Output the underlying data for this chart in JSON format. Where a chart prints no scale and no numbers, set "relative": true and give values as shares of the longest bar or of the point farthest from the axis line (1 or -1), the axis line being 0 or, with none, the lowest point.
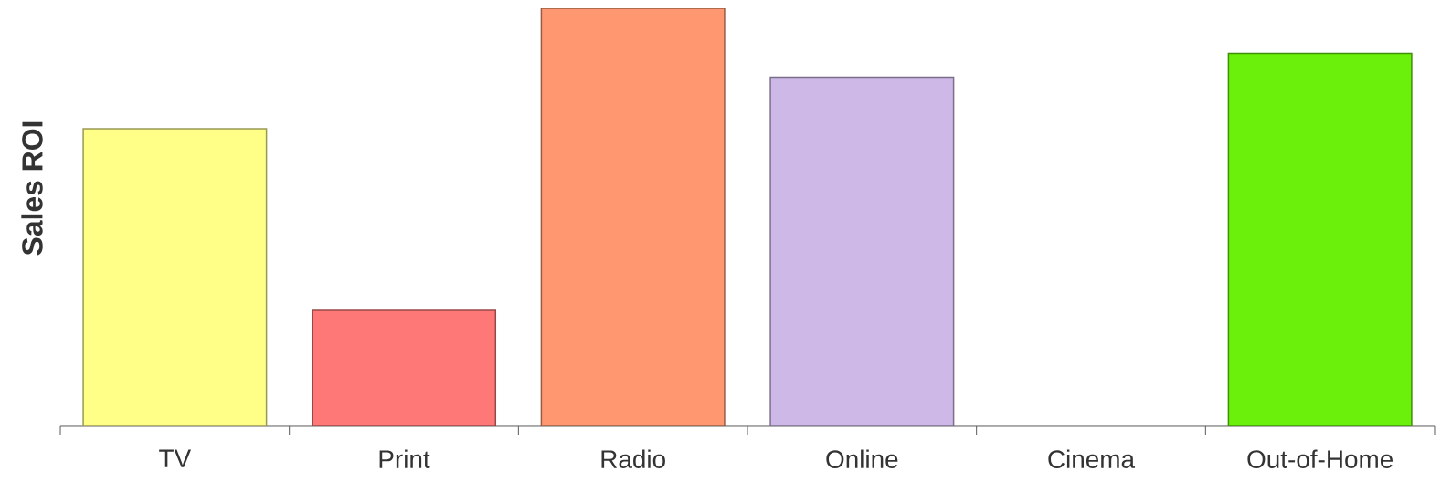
{
  "chart_data": {
    "type": "bar",
    "ylabel": "Sales ROI",
    "relative": true,
    "categories": [
      "TV",
      "Print",
      "Radio",
      "Online",
      "Cinema",
      "Out-of-Home"
    ],
    "values": [
      0.712,
      0.277,
      1,
      0.835,
      null,
      0.892
    ],
    "colors": [
      "#ffff88",
      "#ff7878",
      "#ff9870",
      "#cdb8e8",
      "#ffffff",
      "#6af00a"
    ]
  }
}
